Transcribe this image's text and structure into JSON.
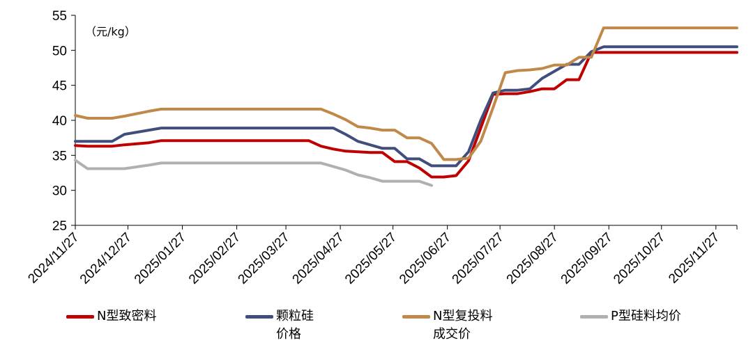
{
  "chart_data": {
    "type": "line",
    "unit_label": "（元/kg）",
    "y_ticks": [
      25,
      30,
      35,
      40,
      45,
      50,
      55
    ],
    "ylim": [
      25,
      55
    ],
    "x_tick_labels": [
      "2024/11/27",
      "2024/12/27",
      "2025/01/27",
      "2025/02/27",
      "2025/03/27",
      "2025/04/27",
      "2025/05/27",
      "2025/06/27",
      "2025/07/27",
      "2025/08/27",
      "2025/09/27",
      "2025/10/27",
      "2025/11/27"
    ],
    "x_range": [
      "2024/11/27",
      "2025/12/09"
    ],
    "grid": false,
    "legend_position": "bottom",
    "series": [
      {
        "name": "N型致密料",
        "color": "#C00000",
        "points": [
          [
            "2024/11/27",
            36.4
          ],
          [
            "2024/12/04",
            36.3
          ],
          [
            "2024/12/18",
            36.3
          ],
          [
            "2024/12/25",
            36.5
          ],
          [
            "2025/01/08",
            36.8
          ],
          [
            "2025/01/15",
            37.1
          ],
          [
            "2025/04/09",
            37.1
          ],
          [
            "2025/04/16",
            36.3
          ],
          [
            "2025/04/23",
            35.9
          ],
          [
            "2025/04/30",
            35.6
          ],
          [
            "2025/05/07",
            35.5
          ],
          [
            "2025/05/14",
            35.4
          ],
          [
            "2025/05/21",
            35.4
          ],
          [
            "2025/05/28",
            34.1
          ],
          [
            "2025/06/04",
            34.1
          ],
          [
            "2025/06/11",
            33.2
          ],
          [
            "2025/06/18",
            31.9
          ],
          [
            "2025/06/25",
            31.9
          ],
          [
            "2025/07/02",
            32.1
          ],
          [
            "2025/07/09",
            34.2
          ],
          [
            "2025/07/16",
            38.9
          ],
          [
            "2025/07/23",
            43.7
          ],
          [
            "2025/07/30",
            43.8
          ],
          [
            "2025/08/06",
            43.8
          ],
          [
            "2025/08/13",
            44.1
          ],
          [
            "2025/08/20",
            44.5
          ],
          [
            "2025/08/27",
            44.5
          ],
          [
            "2025/09/03",
            45.8
          ],
          [
            "2025/09/10",
            45.8
          ],
          [
            "2025/09/17",
            49.7
          ],
          [
            "2025/12/09",
            49.7
          ]
        ]
      },
      {
        "name": "颗粒硅\n价格",
        "color": "#404E7C",
        "points": [
          [
            "2024/11/27",
            37.0
          ],
          [
            "2024/12/18",
            37.0
          ],
          [
            "2024/12/25",
            38.0
          ],
          [
            "2025/01/08",
            38.6
          ],
          [
            "2025/01/15",
            38.9
          ],
          [
            "2025/04/23",
            38.9
          ],
          [
            "2025/04/30",
            38.0
          ],
          [
            "2025/05/07",
            37.0
          ],
          [
            "2025/05/21",
            36.0
          ],
          [
            "2025/05/28",
            36.0
          ],
          [
            "2025/06/04",
            34.5
          ],
          [
            "2025/06/11",
            34.5
          ],
          [
            "2025/06/18",
            33.5
          ],
          [
            "2025/06/25",
            33.5
          ],
          [
            "2025/07/02",
            33.5
          ],
          [
            "2025/07/09",
            35.5
          ],
          [
            "2025/07/16",
            40.0
          ],
          [
            "2025/07/23",
            43.9
          ],
          [
            "2025/07/30",
            44.3
          ],
          [
            "2025/08/06",
            44.3
          ],
          [
            "2025/08/13",
            44.5
          ],
          [
            "2025/08/20",
            46.0
          ],
          [
            "2025/08/27",
            47.0
          ],
          [
            "2025/09/03",
            48.0
          ],
          [
            "2025/09/10",
            48.0
          ],
          [
            "2025/09/17",
            49.8
          ],
          [
            "2025/09/24",
            50.5
          ],
          [
            "2025/12/09",
            50.5
          ]
        ]
      },
      {
        "name": "N型复投料\n成交价",
        "color": "#C0894A",
        "points": [
          [
            "2024/11/27",
            40.7
          ],
          [
            "2024/12/04",
            40.3
          ],
          [
            "2024/12/18",
            40.3
          ],
          [
            "2024/12/25",
            40.6
          ],
          [
            "2025/01/08",
            41.3
          ],
          [
            "2025/01/15",
            41.6
          ],
          [
            "2025/04/16",
            41.6
          ],
          [
            "2025/04/23",
            40.9
          ],
          [
            "2025/04/30",
            40.1
          ],
          [
            "2025/05/07",
            39.1
          ],
          [
            "2025/05/14",
            38.9
          ],
          [
            "2025/05/21",
            38.6
          ],
          [
            "2025/05/28",
            38.6
          ],
          [
            "2025/06/04",
            37.5
          ],
          [
            "2025/06/11",
            37.5
          ],
          [
            "2025/06/18",
            36.7
          ],
          [
            "2025/06/25",
            34.4
          ],
          [
            "2025/07/02",
            34.4
          ],
          [
            "2025/07/09",
            34.6
          ],
          [
            "2025/07/16",
            37.0
          ],
          [
            "2025/07/23",
            41.8
          ],
          [
            "2025/07/30",
            46.8
          ],
          [
            "2025/08/06",
            47.1
          ],
          [
            "2025/08/13",
            47.2
          ],
          [
            "2025/08/20",
            47.4
          ],
          [
            "2025/08/27",
            47.9
          ],
          [
            "2025/09/03",
            47.9
          ],
          [
            "2025/09/10",
            49.0
          ],
          [
            "2025/09/17",
            49.0
          ],
          [
            "2025/09/24",
            53.2
          ],
          [
            "2025/12/09",
            53.2
          ]
        ]
      },
      {
        "name": "P型硅料均价",
        "color": "#B0B0B0",
        "points": [
          [
            "2024/11/27",
            34.3
          ],
          [
            "2024/12/04",
            33.1
          ],
          [
            "2024/12/25",
            33.1
          ],
          [
            "2025/01/08",
            33.6
          ],
          [
            "2025/01/15",
            33.9
          ],
          [
            "2025/04/16",
            33.9
          ],
          [
            "2025/04/23",
            33.4
          ],
          [
            "2025/04/30",
            32.9
          ],
          [
            "2025/05/07",
            32.2
          ],
          [
            "2025/05/14",
            31.8
          ],
          [
            "2025/05/21",
            31.3
          ],
          [
            "2025/06/11",
            31.3
          ],
          [
            "2025/06/18",
            30.7
          ]
        ]
      }
    ]
  }
}
